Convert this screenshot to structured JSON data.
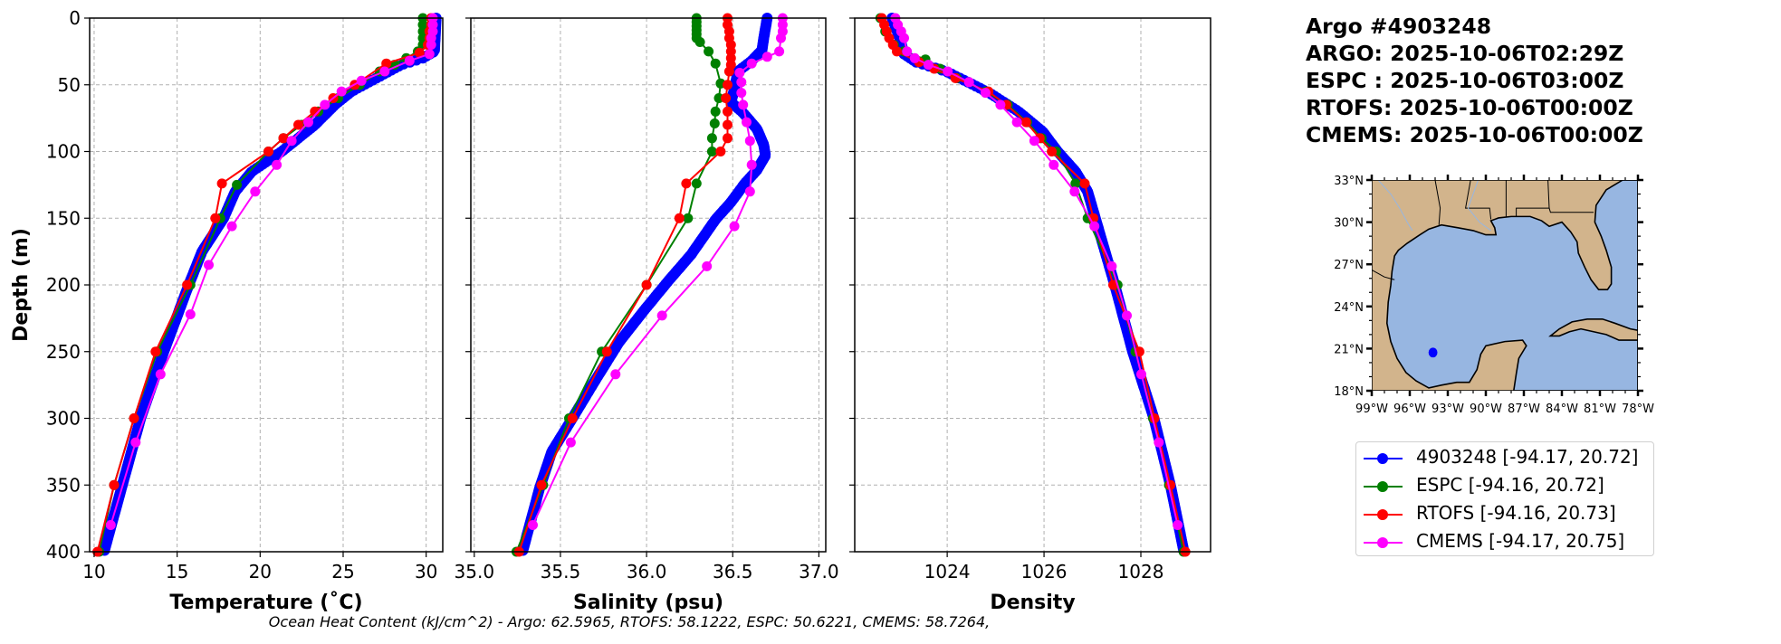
{
  "header": {
    "lines": [
      "Argo #4903248",
      "ARGO: 2025-10-06T02:29Z",
      "ESPC : 2025-10-06T03:00Z",
      "RTOFS: 2025-10-06T00:00Z",
      "CMEMS: 2025-10-06T00:00Z"
    ]
  },
  "footer": "Ocean Heat Content (kJ/cm^2) - Argo: 62.5965,  RTOFS: 58.1222,  ESPC: 50.6221,  CMEMS: 58.7264,",
  "legend": [
    {
      "label": "4903248 [-94.17, 20.72]",
      "color": "#0000ff"
    },
    {
      "label": "ESPC [-94.16, 20.72]",
      "color": "#008000"
    },
    {
      "label": "RTOFS [-94.16, 20.73]",
      "color": "#ff0000"
    },
    {
      "label": "CMEMS [-94.17, 20.75]",
      "color": "#ff00ff"
    }
  ],
  "map": {
    "lon_labels": [
      "99°W",
      "96°W",
      "93°W",
      "90°W",
      "87°W",
      "84°W",
      "81°W",
      "78°W"
    ],
    "lon_values": [
      -99,
      -96,
      -93,
      -90,
      -87,
      -84,
      -81,
      -78
    ],
    "lat_labels": [
      "18°N",
      "21°N",
      "24°N",
      "27°N",
      "30°N",
      "33°N"
    ],
    "lat_values": [
      18,
      21,
      24,
      27,
      30,
      33
    ],
    "extent": {
      "lon": [
        -99,
        -78
      ],
      "lat": [
        18,
        33
      ]
    },
    "float_position": {
      "lon": -94.17,
      "lat": 20.72,
      "color": "#0000ff"
    },
    "land_color": "#d2b48c",
    "water_color": "#97b6e1"
  },
  "chart_data": [
    {
      "type": "line",
      "xlabel": "Temperature (˚C)",
      "ylabel": "Depth (m)",
      "xlim": [
        9.73,
        31.0
      ],
      "ylim": [
        400,
        0
      ],
      "xticks": [
        10,
        15,
        20,
        25,
        30
      ],
      "xtick_labels": [
        "10",
        "15",
        "20",
        "25",
        "30"
      ],
      "yticks": [
        0,
        50,
        100,
        150,
        200,
        250,
        300,
        350,
        400
      ],
      "ytick_labels": [
        "0",
        "50",
        "100",
        "150",
        "200",
        "250",
        "300",
        "350",
        "400"
      ],
      "grid": true,
      "series": [
        {
          "name": "4903248",
          "color": "#0000ff",
          "dense": true,
          "depth": [
            0,
            25,
            30,
            35,
            45,
            55,
            65,
            80,
            100,
            115,
            130,
            150,
            175,
            200,
            250,
            300,
            350,
            400
          ],
          "values": [
            30.6,
            30.5,
            29.8,
            28.5,
            27.0,
            25.5,
            24.5,
            23.3,
            21.3,
            19.5,
            18.5,
            17.8,
            16.5,
            15.7,
            14.2,
            12.8,
            11.7,
            10.6
          ]
        },
        {
          "name": "ESPC",
          "color": "#008000",
          "depth": [
            0,
            5,
            10,
            15,
            20,
            25,
            30,
            35,
            40,
            50,
            60,
            70,
            80,
            90,
            100,
            125,
            150,
            200,
            250,
            300,
            350,
            400
          ],
          "values": [
            29.8,
            29.8,
            29.8,
            29.8,
            29.8,
            29.5,
            28.8,
            28.1,
            27.2,
            26.0,
            24.7,
            23.5,
            22.5,
            21.4,
            20.5,
            18.6,
            17.6,
            15.8,
            13.8,
            12.4,
            11.2,
            10.3
          ]
        },
        {
          "name": "RTOFS",
          "color": "#ff0000",
          "depth": [
            0,
            5,
            10,
            15,
            20,
            26,
            34,
            50,
            60,
            70,
            80,
            90,
            100,
            124,
            150,
            200,
            250,
            300,
            350,
            400
          ],
          "values": [
            30.3,
            30.3,
            30.2,
            30.2,
            30.1,
            29.6,
            27.6,
            25.7,
            24.4,
            23.3,
            22.3,
            21.4,
            20.5,
            17.7,
            17.3,
            15.6,
            13.7,
            12.4,
            11.2,
            10.2
          ]
        },
        {
          "name": "CMEMS",
          "color": "#ff00ff",
          "depth": [
            0,
            5,
            10,
            15,
            20,
            27,
            32,
            40,
            47,
            55,
            65,
            78,
            92,
            110,
            130,
            156,
            185,
            222,
            267,
            318,
            380
          ],
          "values": [
            30.4,
            30.4,
            30.4,
            30.3,
            30.3,
            30.2,
            29.0,
            27.5,
            26.1,
            24.9,
            23.9,
            22.9,
            21.9,
            21.0,
            19.7,
            18.3,
            16.9,
            15.8,
            14.0,
            12.5,
            11.0
          ]
        }
      ]
    },
    {
      "type": "line",
      "xlabel": "Salinity (psu)",
      "ylabel": "",
      "xlim": [
        34.98,
        37.04
      ],
      "ylim": [
        400,
        0
      ],
      "xticks": [
        35.0,
        35.5,
        36.0,
        36.5,
        37.0
      ],
      "xtick_labels": [
        "35.0",
        "35.5",
        "36.0",
        "36.5",
        "37.0"
      ],
      "yticks": [
        0,
        50,
        100,
        150,
        200,
        250,
        300,
        350,
        400
      ],
      "grid": true,
      "series": [
        {
          "name": "4903248",
          "color": "#0000ff",
          "dense": true,
          "depth": [
            0,
            15,
            24,
            32,
            40,
            53,
            63,
            71,
            83,
            95,
            103,
            114,
            124,
            138,
            151,
            177,
            198,
            220,
            243,
            272,
            302,
            325,
            352,
            400
          ],
          "values": [
            36.7,
            36.68,
            36.67,
            36.61,
            36.53,
            36.51,
            36.49,
            36.56,
            36.64,
            36.68,
            36.69,
            36.64,
            36.57,
            36.49,
            36.4,
            36.26,
            36.12,
            35.98,
            35.84,
            35.7,
            35.56,
            35.45,
            35.38,
            35.28
          ]
        },
        {
          "name": "ESPC",
          "color": "#008000",
          "depth": [
            0,
            3,
            6,
            9,
            12,
            15,
            18,
            25,
            34,
            49,
            60,
            70,
            79,
            90,
            100,
            124,
            150,
            200,
            250,
            300,
            350,
            400
          ],
          "values": [
            36.29,
            36.29,
            36.29,
            36.29,
            36.29,
            36.29,
            36.31,
            36.36,
            36.4,
            36.43,
            36.42,
            36.4,
            36.395,
            36.38,
            36.38,
            36.29,
            36.24,
            36.0,
            35.74,
            35.55,
            35.4,
            35.245
          ]
        },
        {
          "name": "RTOFS",
          "color": "#ff0000",
          "depth": [
            0,
            5,
            10,
            15,
            20,
            25,
            30,
            35,
            40,
            50,
            60,
            70,
            80,
            90,
            100,
            124,
            150,
            200,
            250,
            300,
            350,
            400
          ],
          "values": [
            36.47,
            36.47,
            36.48,
            36.48,
            36.49,
            36.49,
            36.49,
            36.49,
            36.48,
            36.47,
            36.46,
            36.47,
            36.47,
            36.47,
            36.43,
            36.23,
            36.19,
            36.0,
            35.77,
            35.57,
            35.39,
            35.26
          ]
        },
        {
          "name": "CMEMS",
          "color": "#ff00ff",
          "depth": [
            0,
            5,
            10,
            15,
            25,
            29,
            34,
            41,
            48,
            56,
            65,
            78,
            92,
            110,
            130,
            156,
            186,
            223,
            267,
            318,
            380
          ],
          "values": [
            36.79,
            36.79,
            36.79,
            36.78,
            36.77,
            36.7,
            36.61,
            36.54,
            36.55,
            36.55,
            36.56,
            36.58,
            36.6,
            36.61,
            36.6,
            36.51,
            36.35,
            36.09,
            35.82,
            35.56,
            35.34
          ]
        }
      ]
    },
    {
      "type": "line",
      "xlabel": "Density",
      "ylabel": "",
      "xlim": [
        1022.09,
        1029.44
      ],
      "ylim": [
        400,
        0
      ],
      "xticks": [
        1024,
        1026,
        1028
      ],
      "xtick_labels": [
        "1024",
        "1026",
        "1028"
      ],
      "yticks": [
        0,
        50,
        100,
        150,
        200,
        250,
        300,
        350,
        400
      ],
      "grid": true,
      "series": [
        {
          "name": "4903248",
          "color": "#0000ff",
          "dense": true,
          "depth": [
            0,
            15,
            27,
            33,
            40,
            50,
            57,
            70,
            85,
            100,
            115,
            130,
            150,
            200,
            250,
            300,
            350,
            400
          ],
          "values": [
            1022.86,
            1023.02,
            1023.11,
            1023.36,
            1023.98,
            1024.54,
            1024.91,
            1025.47,
            1025.97,
            1026.28,
            1026.65,
            1026.9,
            1027.06,
            1027.46,
            1027.83,
            1028.27,
            1028.61,
            1028.89
          ]
        },
        {
          "name": "ESPC",
          "color": "#008000",
          "depth": [
            0,
            10,
            20,
            25,
            31,
            38,
            45,
            55,
            65,
            78,
            90,
            100,
            124,
            150,
            200,
            250,
            300,
            350,
            400
          ],
          "values": [
            1022.62,
            1022.72,
            1022.9,
            1023.1,
            1023.55,
            1023.85,
            1024.2,
            1024.8,
            1025.25,
            1025.65,
            1025.95,
            1026.25,
            1026.65,
            1026.9,
            1027.52,
            1027.89,
            1028.25,
            1028.58,
            1028.88
          ]
        },
        {
          "name": "RTOFS",
          "color": "#ff0000",
          "depth": [
            0,
            5,
            10,
            15,
            20,
            25,
            33,
            38,
            45,
            55,
            65,
            78,
            90,
            100,
            124,
            150,
            200,
            250,
            300,
            350,
            400
          ],
          "values": [
            1022.65,
            1022.7,
            1022.75,
            1022.8,
            1022.88,
            1022.96,
            1023.42,
            1023.73,
            1024.17,
            1024.85,
            1025.22,
            1025.63,
            1025.91,
            1026.16,
            1026.84,
            1027.02,
            1027.43,
            1027.97,
            1028.28,
            1028.61,
            1028.92
          ]
        },
        {
          "name": "CMEMS",
          "color": "#ff00ff",
          "depth": [
            0,
            5,
            10,
            15,
            25,
            30,
            35,
            40,
            48,
            56,
            65,
            78,
            92,
            110,
            130,
            156,
            186,
            223,
            267,
            318,
            380
          ],
          "values": [
            1022.93,
            1022.98,
            1023.05,
            1023.11,
            1023.17,
            1023.33,
            1023.61,
            1024.01,
            1024.45,
            1024.79,
            1025.1,
            1025.44,
            1025.8,
            1026.2,
            1026.63,
            1027.04,
            1027.4,
            1027.71,
            1028.01,
            1028.37,
            1028.76
          ]
        }
      ]
    }
  ]
}
